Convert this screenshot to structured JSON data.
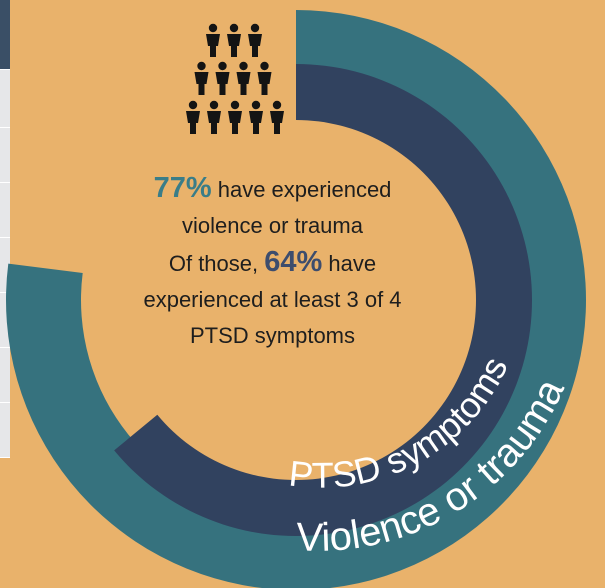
{
  "chart_data": {
    "type": "pie",
    "subtype": "nested-donut",
    "series": [
      {
        "name": "Violence or trauma",
        "value": 77,
        "unit": "%",
        "color": "#36727E"
      },
      {
        "name": "PTSD symptoms",
        "value": 64,
        "unit": "%",
        "color": "#31425F"
      }
    ],
    "annotations": {
      "stat1_value": "77%",
      "stat1_text_a": " have experienced",
      "stat1_text_b": "violence or trauma",
      "stat2_prefix": "Of those, ",
      "stat2_value": "64%",
      "stat2_text_a": " have",
      "stat2_text_b": "experienced at least 3 of 4",
      "stat2_text_c": "PTSD symptoms"
    },
    "legend": "none"
  },
  "colors": {
    "background": "#E9B26B",
    "outer_ring": "#36727E",
    "inner_ring": "#31425F",
    "stat1_accent": "#3A7D88",
    "stat2_accent": "#3D4D6D",
    "icon": "#141414"
  },
  "icons": {
    "people_pyramid": "people-group-icon"
  }
}
